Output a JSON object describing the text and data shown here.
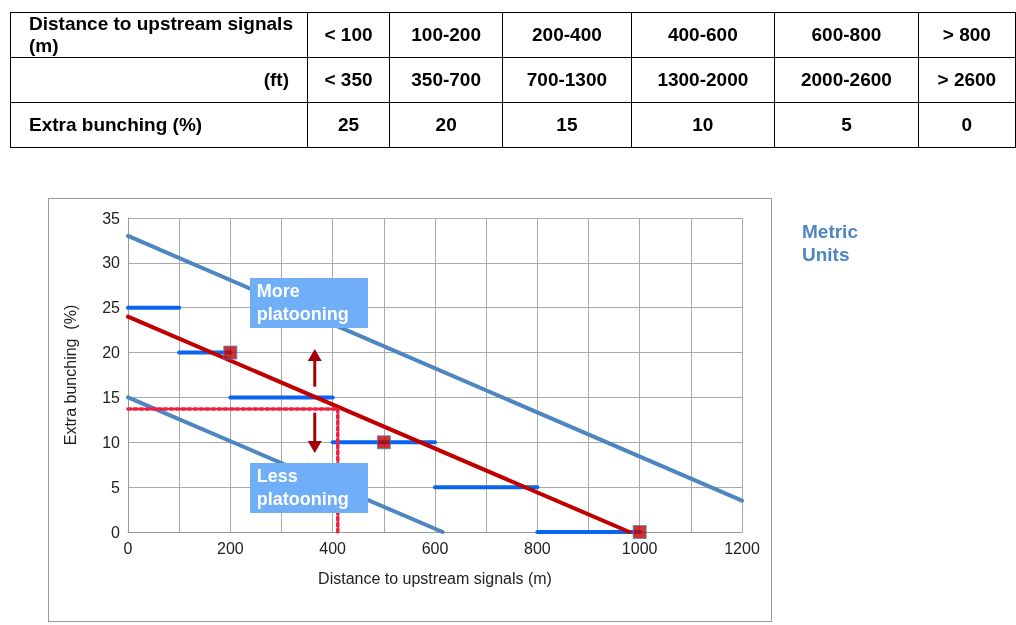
{
  "chart_data": [
    {
      "type": "other",
      "annotations": [
        "Distance to upstream signals (m)",
        "< 100",
        "100-200",
        "200-400",
        "400-600",
        "600-800",
        "> 800",
        "(ft)",
        "< 350",
        "350-700",
        "700-1300",
        "1300-2000",
        "2000-2600",
        "> 2600",
        "Extra bunching (%)",
        "25",
        "20",
        "15",
        "10",
        "5",
        "0"
      ]
    },
    {
      "type": "line",
      "xlabel": "Distance to upstream signals (m)",
      "ylabel": "Extra bunching  (%)",
      "xlim": [
        0,
        1200
      ],
      "ylim": [
        0,
        35
      ],
      "xticks": [
        0,
        {
          "value": 100,
          "label": null
        },
        200,
        {
          "value": 300,
          "label": null
        },
        400,
        {
          "value": 500,
          "label": null
        },
        600,
        {
          "value": 700,
          "label": null
        },
        800,
        {
          "value": 900,
          "label": null
        },
        1000,
        {
          "value": 1100,
          "label": null
        },
        1200
      ],
      "yticks": [
        0,
        5,
        10,
        15,
        20,
        25,
        30,
        35
      ],
      "grid": true,
      "series": [
        {
          "type": "line",
          "x": [
            0,
            1200
          ],
          "values": [
            33,
            3.5
          ],
          "color": "#4f86bf",
          "marker": "none",
          "line_style": "solid"
        },
        {
          "type": "line",
          "x": [
            0,
            615
          ],
          "values": [
            15,
            0
          ],
          "color": "#4f86bf",
          "marker": "none",
          "line_style": "solid"
        },
        {
          "type": "line",
          "x": [
            0,
            100
          ],
          "values": [
            25,
            25
          ],
          "color": "#0a64f0",
          "marker": "none",
          "line_style": "solid"
        },
        {
          "type": "line",
          "x": [
            100,
            200
          ],
          "values": [
            20,
            20
          ],
          "color": "#0a64f0",
          "marker": "none",
          "line_style": "solid"
        },
        {
          "type": "line",
          "x": [
            200,
            400
          ],
          "values": [
            15,
            15
          ],
          "color": "#0a64f0",
          "marker": "none",
          "line_style": "solid"
        },
        {
          "type": "line",
          "x": [
            400,
            600
          ],
          "values": [
            10,
            10
          ],
          "color": "#0a64f0",
          "marker": "none",
          "line_style": "solid"
        },
        {
          "type": "line",
          "x": [
            600,
            800
          ],
          "values": [
            5,
            5
          ],
          "color": "#0a64f0",
          "marker": "none",
          "line_style": "solid"
        },
        {
          "type": "line",
          "x": [
            800,
            1000
          ],
          "values": [
            0,
            0
          ],
          "color": "#0a64f0",
          "marker": "none",
          "line_style": "solid"
        },
        {
          "type": "line",
          "x": [
            0,
            980
          ],
          "values": [
            24,
            0
          ],
          "color": "#c00000",
          "marker": "none",
          "line_style": "solid"
        },
        {
          "type": "line",
          "x": [
            0,
            410,
            410
          ],
          "values": [
            13.7,
            13.7,
            0
          ],
          "color": "#ee2040",
          "marker": "none",
          "line_style": "dotted"
        },
        {
          "type": "scatter",
          "x": [
            200,
            500,
            1000
          ],
          "values": [
            20,
            10,
            0
          ],
          "color": "#c00000",
          "marker": "square"
        }
      ],
      "annotations": [
        "More platooning",
        "Less platooning",
        "Metric Units"
      ]
    }
  ]
}
